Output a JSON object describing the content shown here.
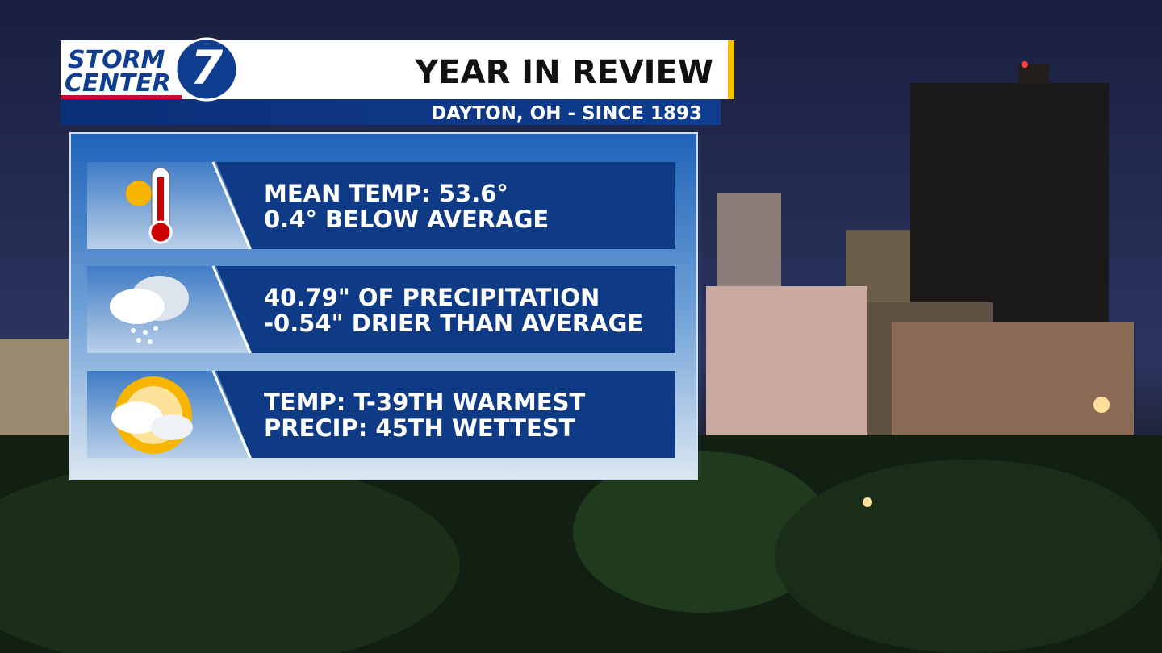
{
  "logo": {
    "line1": "STORM",
    "line2": "CENTER",
    "number": "7"
  },
  "header": {
    "title": "YEAR IN REVIEW",
    "subtitle": "DAYTON, OH - SINCE 1893"
  },
  "rows": [
    {
      "lines": [
        "MEAN TEMP: 53.6°",
        "0.4° BELOW AVERAGE"
      ]
    },
    {
      "lines": [
        "40.79\" OF PRECIPITATION",
        "-0.54\" DRIER THAN AVERAGE"
      ]
    },
    {
      "lines": [
        "TEMP: T-39TH WARMEST",
        "PRECIP: 45TH WETTEST"
      ]
    }
  ]
}
